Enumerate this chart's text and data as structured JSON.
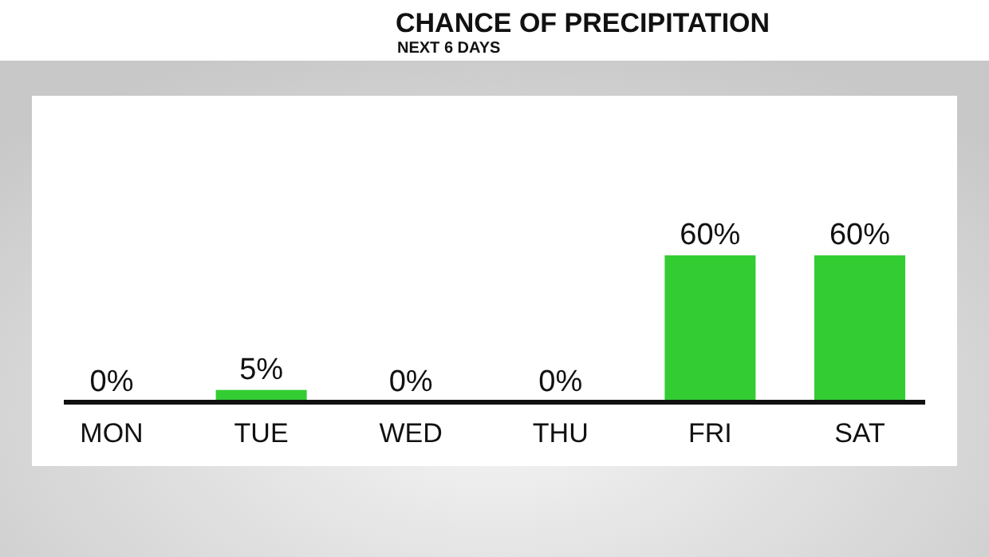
{
  "chart_data": {
    "type": "bar",
    "title": "CHANCE OF PRECIPITATION",
    "subtitle": "NEXT 6 DAYS",
    "categories": [
      "MON",
      "TUE",
      "WED",
      "THU",
      "FRI",
      "SAT"
    ],
    "values": [
      0,
      5,
      0,
      0,
      60,
      60
    ],
    "value_labels": [
      "0%",
      "5%",
      "0%",
      "0%",
      "60%",
      "60%"
    ],
    "color": "#33cc33"
  }
}
